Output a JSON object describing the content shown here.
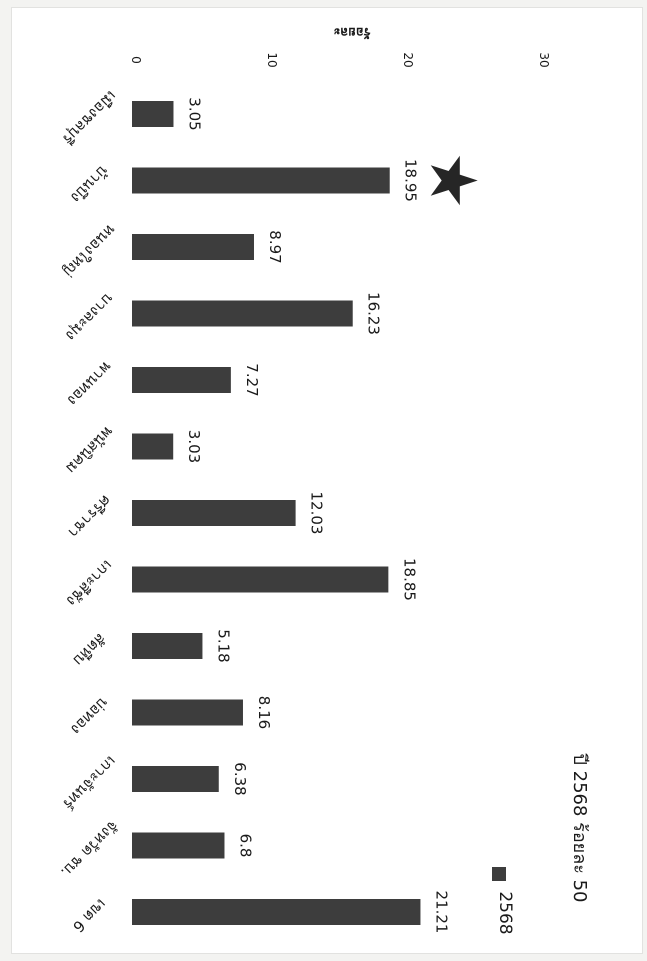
{
  "chart_data": {
    "type": "bar",
    "orientation": "horizontal",
    "categories": [
      "เมืองชลบุรี",
      "บ้านบึง",
      "หนองใหญ่",
      "บางละมุง",
      "พานทอง",
      "พนัสนิคม",
      "ศรีราชา",
      "เกาะสีชัง",
      "สัตหีบ",
      "บ่อทอง",
      "เกาะจันทร์",
      "จังหวัด ชบ.",
      "เขต 6"
    ],
    "series": [
      {
        "name": "2568",
        "values": [
          3.05,
          18.95,
          8.97,
          16.23,
          7.27,
          3.03,
          12.03,
          18.85,
          5.18,
          8.16,
          6.38,
          6.8,
          21.21
        ]
      }
    ],
    "ylabel": "ร้อยละ",
    "ticks": [
      "0",
      "10",
      "20",
      "30"
    ],
    "ylim": [
      0,
      30
    ],
    "annotation": "ปี 2568 ร้อยละ 50",
    "legend_position": "bottom",
    "highlight_marker": "star-icon",
    "highlight_category": "บ้านบึง",
    "bar_color": "#3d3d3d",
    "grid": false
  }
}
